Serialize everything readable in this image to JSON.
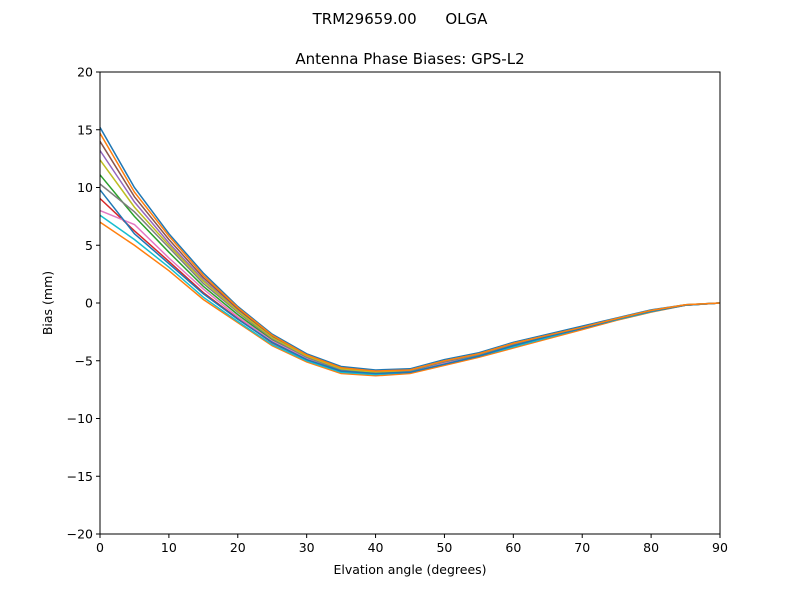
{
  "chart_data": {
    "type": "line",
    "suptitle": "TRM29659.00      OLGA",
    "title": "Antenna Phase Biases: GPS-L2",
    "xlabel": "Elvation angle (degrees)",
    "ylabel": "Bias (mm)",
    "xlim": [
      0,
      90
    ],
    "ylim": [
      -20,
      20
    ],
    "xticks": [
      0,
      10,
      20,
      30,
      40,
      50,
      60,
      70,
      80,
      90
    ],
    "yticks": [
      -20,
      -15,
      -10,
      -5,
      0,
      5,
      10,
      15,
      20
    ],
    "ytick_labels": [
      "−20",
      "−15",
      "−10",
      "−5",
      "0",
      "5",
      "10",
      "15",
      "20"
    ],
    "grid": false,
    "colors": [
      "#1f77b4",
      "#ff7f0e",
      "#2ca02c",
      "#d62728",
      "#9467bd",
      "#8c564b",
      "#e377c2",
      "#7f7f7f",
      "#bcbd22",
      "#17becf"
    ],
    "x": [
      0,
      5,
      10,
      15,
      20,
      25,
      30,
      35,
      40,
      45,
      50,
      55,
      60,
      65,
      70,
      75,
      80,
      85,
      90
    ],
    "series": [
      {
        "values": [
          15.2,
          10.0,
          6.0,
          2.6,
          -0.3,
          -2.7,
          -4.4,
          -5.5,
          -5.8,
          -5.7,
          -4.9,
          -4.3,
          -3.4,
          -2.7,
          -2.0,
          -1.3,
          -0.6,
          -0.15,
          0
        ]
      },
      {
        "values": [
          7.0,
          5.0,
          2.8,
          0.3,
          -1.7,
          -3.7,
          -5.1,
          -6.1,
          -6.3,
          -6.1,
          -5.4,
          -4.7,
          -3.9,
          -3.1,
          -2.3,
          -1.5,
          -0.8,
          -0.2,
          0
        ]
      },
      {
        "values": [
          11.1,
          7.5,
          4.4,
          1.45,
          -1.0,
          -3.2,
          -4.75,
          -5.8,
          -6.05,
          -5.9,
          -5.15,
          -4.5,
          -3.65,
          -2.9,
          -2.15,
          -1.4,
          -0.7,
          -0.18,
          0
        ]
      },
      {
        "values": [
          9.05,
          6.25,
          3.6,
          0.9,
          -1.35,
          -3.45,
          -4.9,
          -5.95,
          -6.2,
          -6.0,
          -5.3,
          -4.6,
          -3.8,
          -3.0,
          -2.2,
          -1.45,
          -0.75,
          -0.19,
          0
        ]
      },
      {
        "values": [
          13.2,
          8.75,
          5.2,
          2.0,
          -0.65,
          -2.95,
          -4.6,
          -5.65,
          -5.9,
          -5.8,
          -5.0,
          -4.4,
          -3.5,
          -2.8,
          -2.1,
          -1.35,
          -0.65,
          -0.16,
          0
        ]
      },
      {
        "values": [
          14.0,
          9.2,
          5.5,
          2.2,
          -0.5,
          -2.9,
          -4.5,
          -5.6,
          -6.0,
          -5.8,
          -5.1,
          -4.4,
          -3.6,
          -2.8,
          -2.1,
          -1.4,
          -0.7,
          -0.17,
          0
        ]
      },
      {
        "values": [
          8.0,
          6.8,
          3.9,
          1.2,
          -1.2,
          -3.3,
          -4.8,
          -5.9,
          -6.1,
          -5.9,
          -5.2,
          -4.5,
          -3.7,
          -2.9,
          -2.2,
          -1.4,
          -0.7,
          -0.18,
          0
        ]
      },
      {
        "values": [
          10.3,
          7.9,
          4.8,
          1.7,
          -0.8,
          -3.1,
          -4.7,
          -5.8,
          -6.0,
          -5.9,
          -5.1,
          -4.5,
          -3.6,
          -2.9,
          -2.1,
          -1.4,
          -0.7,
          -0.17,
          0
        ]
      },
      {
        "values": [
          12.4,
          8.3,
          5.0,
          1.9,
          -0.7,
          -3.0,
          -4.6,
          -5.7,
          -6.0,
          -5.8,
          -5.0,
          -4.4,
          -3.5,
          -2.8,
          -2.1,
          -1.35,
          -0.65,
          -0.16,
          0
        ]
      },
      {
        "values": [
          7.6,
          5.5,
          3.1,
          0.5,
          -1.6,
          -3.6,
          -5.0,
          -6.0,
          -6.2,
          -6.0,
          -5.3,
          -4.6,
          -3.8,
          -3.0,
          -2.2,
          -1.45,
          -0.75,
          -0.19,
          0
        ]
      },
      {
        "values": [
          9.8,
          6.0,
          3.4,
          0.8,
          -1.4,
          -3.4,
          -4.9,
          -5.9,
          -6.1,
          -6.0,
          -5.3,
          -4.6,
          -3.7,
          -2.9,
          -2.2,
          -1.4,
          -0.7,
          -0.18,
          0
        ]
      },
      {
        "values": [
          14.7,
          9.6,
          5.8,
          2.4,
          -0.4,
          -2.8,
          -4.5,
          -5.6,
          -5.9,
          -5.8,
          -5.0,
          -4.4,
          -3.5,
          -2.8,
          -2.1,
          -1.35,
          -0.65,
          -0.16,
          0
        ]
      }
    ]
  }
}
